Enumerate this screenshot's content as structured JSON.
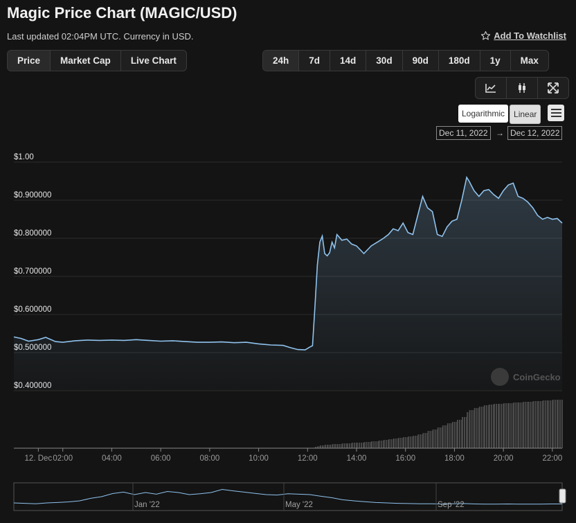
{
  "header": {
    "title": "Magic Price Chart (MAGIC/USD)",
    "subtitle": "Last updated 02:04PM UTC. Currency in USD.",
    "watchlist_label": "Add To Watchlist"
  },
  "chart_tabs": [
    "Price",
    "Market Cap",
    "Live Chart"
  ],
  "active_tab": "Price",
  "ranges": [
    "24h",
    "7d",
    "14d",
    "30d",
    "90d",
    "180d",
    "1y",
    "Max"
  ],
  "active_range": "24h",
  "tools": [
    "line-chart-icon",
    "candlestick-icon",
    "fullscreen-icon"
  ],
  "scale": {
    "log_label": "Logarithmic",
    "linear_label": "Linear",
    "active": "Linear"
  },
  "date_range": {
    "from": "Dec 11, 2022",
    "arrow": "→",
    "to": "Dec 12, 2022"
  },
  "watermark": "CoinGecko",
  "colors": {
    "line": "#8fc3ee",
    "background": "#141414",
    "volume": "#4a4a4a"
  },
  "chart_data": {
    "type": "area",
    "ylim": [
      0.4,
      1.0
    ],
    "yticks": [
      "$1.00",
      "$0.900000",
      "$0.800000",
      "$0.700000",
      "$0.600000",
      "$0.500000",
      "$0.400000"
    ],
    "xticks": [
      "12. Dec",
      "02:00",
      "04:00",
      "06:00",
      "08:00",
      "10:00",
      "12:00",
      "14:00",
      "16:00",
      "18:00",
      "20:00",
      "22:00"
    ],
    "x_hours": [
      0,
      0.3,
      0.6,
      1.0,
      1.3,
      1.7,
      2.0,
      2.5,
      3.0,
      3.5,
      4.0,
      4.5,
      5.0,
      5.5,
      6.0,
      6.5,
      7.0,
      7.5,
      8.0,
      8.5,
      9.0,
      9.5,
      10.0,
      10.5,
      11.0,
      11.3,
      11.6,
      11.9,
      12.1,
      12.2,
      12.3,
      12.4,
      12.5,
      12.6,
      12.7,
      12.8,
      12.9,
      13.0,
      13.1,
      13.2,
      13.4,
      13.6,
      13.8,
      14.0,
      14.3,
      14.6,
      14.9,
      15.1,
      15.3,
      15.5,
      15.7,
      15.9,
      16.1,
      16.3,
      16.5,
      16.7,
      16.9,
      17.1,
      17.3,
      17.5,
      17.7,
      17.9,
      18.1,
      18.3,
      18.5,
      18.6,
      18.8,
      19.0,
      19.2,
      19.4,
      19.6,
      19.8,
      20.0,
      20.2,
      20.4,
      20.6,
      20.8,
      21.0,
      21.2,
      21.4,
      21.6,
      21.8,
      22.0,
      22.2,
      22.4
    ],
    "price": [
      0.541,
      0.537,
      0.53,
      0.534,
      0.54,
      0.529,
      0.527,
      0.531,
      0.533,
      0.532,
      0.533,
      0.532,
      0.534,
      0.532,
      0.53,
      0.531,
      0.529,
      0.527,
      0.527,
      0.528,
      0.526,
      0.527,
      0.523,
      0.52,
      0.519,
      0.513,
      0.508,
      0.507,
      0.515,
      0.518,
      0.62,
      0.73,
      0.79,
      0.806,
      0.76,
      0.754,
      0.762,
      0.79,
      0.775,
      0.81,
      0.795,
      0.798,
      0.785,
      0.78,
      0.76,
      0.78,
      0.792,
      0.8,
      0.81,
      0.825,
      0.82,
      0.84,
      0.815,
      0.81,
      0.86,
      0.91,
      0.88,
      0.87,
      0.81,
      0.805,
      0.83,
      0.845,
      0.85,
      0.9,
      0.96,
      0.95,
      0.925,
      0.91,
      0.925,
      0.928,
      0.915,
      0.905,
      0.925,
      0.94,
      0.945,
      0.91,
      0.905,
      0.895,
      0.88,
      0.86,
      0.85,
      0.855,
      0.85,
      0.852,
      0.84
    ],
    "volume_axis": {
      "ylim": [
        0,
        1
      ]
    },
    "volume": [
      0,
      0,
      0,
      0,
      0,
      0,
      0,
      0,
      0,
      0,
      0,
      0,
      0,
      0,
      0,
      0,
      0,
      0,
      0,
      0,
      0,
      0,
      0,
      0,
      0,
      0,
      0,
      0,
      0,
      0,
      0.02,
      0.03,
      0.04,
      0.04,
      0.05,
      0.05,
      0.05,
      0.06,
      0.06,
      0.06,
      0.07,
      0.07,
      0.08,
      0.08,
      0.09,
      0.1,
      0.11,
      0.12,
      0.13,
      0.14,
      0.15,
      0.16,
      0.17,
      0.18,
      0.2,
      0.22,
      0.25,
      0.27,
      0.3,
      0.33,
      0.36,
      0.38,
      0.41,
      0.45,
      0.52,
      0.55,
      0.58,
      0.6,
      0.62,
      0.63,
      0.64,
      0.64,
      0.65,
      0.65,
      0.66,
      0.66,
      0.67,
      0.67,
      0.68,
      0.68,
      0.69,
      0.69,
      0.7,
      0.7,
      0.7
    ],
    "navigator": {
      "ticks": [
        "Jan '22",
        "May '22",
        "Sep '22"
      ],
      "values": [
        0.3,
        0.28,
        0.26,
        0.3,
        0.32,
        0.35,
        0.4,
        0.52,
        0.6,
        0.75,
        0.82,
        0.7,
        0.8,
        0.72,
        0.85,
        0.8,
        0.7,
        0.74,
        0.8,
        0.95,
        0.88,
        0.82,
        0.76,
        0.7,
        0.68,
        0.74,
        0.72,
        0.7,
        0.62,
        0.55,
        0.45,
        0.4,
        0.36,
        0.32,
        0.3,
        0.28,
        0.27,
        0.26,
        0.26,
        0.25,
        0.26,
        0.27,
        0.25,
        0.24,
        0.24,
        0.25,
        0.24,
        0.24,
        0.24,
        0.25,
        0.25
      ]
    }
  }
}
